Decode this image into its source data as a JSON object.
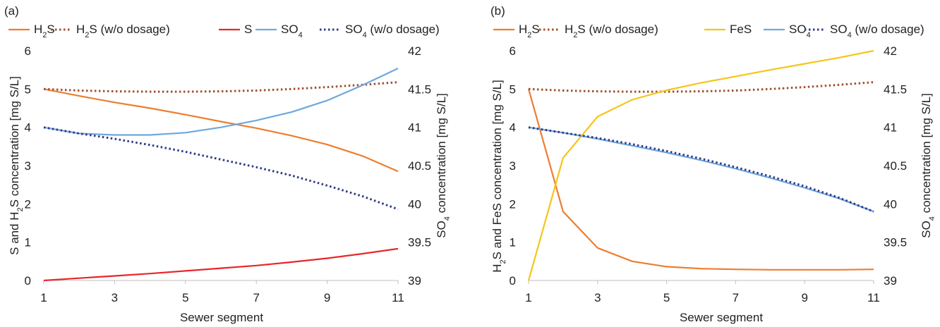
{
  "chart_data": [
    {
      "type": "line",
      "panel_label": "(a)",
      "xlabel": "Sewer segment",
      "ylabel": "S and H2S concentration  [mg S/L]",
      "ylabel_right": "SO4 concentration [mg S/L]",
      "x_ticks": [
        "1",
        "3",
        "5",
        "7",
        "9",
        "11"
      ],
      "y_ticks": [
        "0",
        "1",
        "2",
        "3",
        "4",
        "5",
        "6"
      ],
      "y2_ticks": [
        "39",
        "39.5",
        "40",
        "40.5",
        "41",
        "41.5",
        "42"
      ],
      "xlim": [
        1,
        11
      ],
      "ylim": [
        0,
        6
      ],
      "y2lim": [
        39,
        42
      ],
      "legend_position": "top",
      "x": [
        1,
        2,
        3,
        4,
        5,
        6,
        7,
        8,
        9,
        10,
        11
      ],
      "series": [
        {
          "name": "H2S",
          "axis": "left",
          "color": "#ED7D31",
          "style": "solid",
          "values": [
            5.0,
            4.82,
            4.65,
            4.5,
            4.33,
            4.15,
            3.98,
            3.78,
            3.55,
            3.25,
            2.85
          ]
        },
        {
          "name": "H2S (w/o dosage)",
          "axis": "left",
          "color": "#A0522D",
          "style": "dotted",
          "values": [
            5.0,
            4.96,
            4.94,
            4.93,
            4.93,
            4.94,
            4.96,
            5.0,
            5.05,
            5.11,
            5.18
          ]
        },
        {
          "name": "S",
          "axis": "left",
          "color": "#E8262A",
          "style": "solid",
          "values": [
            0.0,
            0.06,
            0.12,
            0.18,
            0.25,
            0.32,
            0.39,
            0.48,
            0.58,
            0.7,
            0.83
          ]
        },
        {
          "name": "SO4",
          "axis": "right",
          "color": "#6FA8DC",
          "style": "solid",
          "values": [
            41.0,
            40.92,
            40.9,
            40.9,
            40.93,
            41.0,
            41.09,
            41.2,
            41.35,
            41.55,
            41.77
          ]
        },
        {
          "name": "SO4 (w/o dosage)",
          "axis": "right",
          "color": "#2E3A87",
          "style": "dotted",
          "values": [
            41.0,
            40.92,
            40.85,
            40.77,
            40.68,
            40.58,
            40.48,
            40.37,
            40.24,
            40.1,
            39.93
          ]
        }
      ],
      "legend": [
        {
          "label": "H",
          "sub": "2",
          "rest": "S"
        },
        {
          "label": "H",
          "sub": "2",
          "rest": "S (w/o dosage)"
        },
        {
          "label": "S",
          "sub": "",
          "rest": ""
        },
        {
          "label": "SO",
          "sub": "4",
          "rest": ""
        },
        {
          "label": "SO",
          "sub": "4",
          "rest": " (w/o dosage)"
        }
      ]
    },
    {
      "type": "line",
      "panel_label": "(b)",
      "xlabel": "Sewer segment",
      "ylabel": "H2S and FeS concentration [mg S/L]",
      "ylabel_right": "SO4 concentration [mg S/L]",
      "x_ticks": [
        "1",
        "3",
        "5",
        "7",
        "9",
        "11"
      ],
      "y_ticks": [
        "0",
        "1",
        "2",
        "3",
        "4",
        "5",
        "6"
      ],
      "y2_ticks": [
        "39",
        "39.5",
        "40",
        "40.5",
        "41",
        "41.5",
        "42"
      ],
      "xlim": [
        1,
        11
      ],
      "ylim": [
        0,
        6
      ],
      "y2lim": [
        39,
        42
      ],
      "legend_position": "top",
      "x": [
        1,
        2,
        3,
        4,
        5,
        6,
        7,
        8,
        9,
        10,
        11
      ],
      "series": [
        {
          "name": "H2S",
          "axis": "left",
          "color": "#ED7D31",
          "style": "solid",
          "values": [
            5.0,
            1.8,
            0.85,
            0.5,
            0.36,
            0.31,
            0.29,
            0.28,
            0.28,
            0.28,
            0.29
          ]
        },
        {
          "name": "H2S (w/o dosage)",
          "axis": "left",
          "color": "#A0522D",
          "style": "dotted",
          "values": [
            5.0,
            4.96,
            4.94,
            4.93,
            4.93,
            4.94,
            4.96,
            5.0,
            5.05,
            5.11,
            5.18
          ]
        },
        {
          "name": "FeS",
          "axis": "left",
          "color": "#F5C518",
          "style": "solid",
          "values": [
            0.0,
            3.2,
            4.28,
            4.72,
            4.97,
            5.16,
            5.33,
            5.5,
            5.66,
            5.82,
            6.0
          ]
        },
        {
          "name": "SO4",
          "axis": "right",
          "color": "#6FA8DC",
          "style": "solid",
          "values": [
            41.0,
            40.93,
            40.85,
            40.76,
            40.67,
            40.57,
            40.46,
            40.34,
            40.21,
            40.07,
            39.9
          ]
        },
        {
          "name": "SO4 (w/o dosage)",
          "axis": "right",
          "color": "#2E3A87",
          "style": "dotted",
          "values": [
            41.0,
            40.93,
            40.86,
            40.78,
            40.69,
            40.59,
            40.48,
            40.36,
            40.23,
            40.08,
            39.9
          ]
        }
      ],
      "legend": [
        {
          "label": "H",
          "sub": "2",
          "rest": "S"
        },
        {
          "label": "H",
          "sub": "2",
          "rest": "S (w/o dosage)"
        },
        {
          "label": "FeS",
          "sub": "",
          "rest": ""
        },
        {
          "label": "SO",
          "sub": "4",
          "rest": ""
        },
        {
          "label": "SO",
          "sub": "4",
          "rest": " (w/o dosage)"
        }
      ]
    }
  ]
}
